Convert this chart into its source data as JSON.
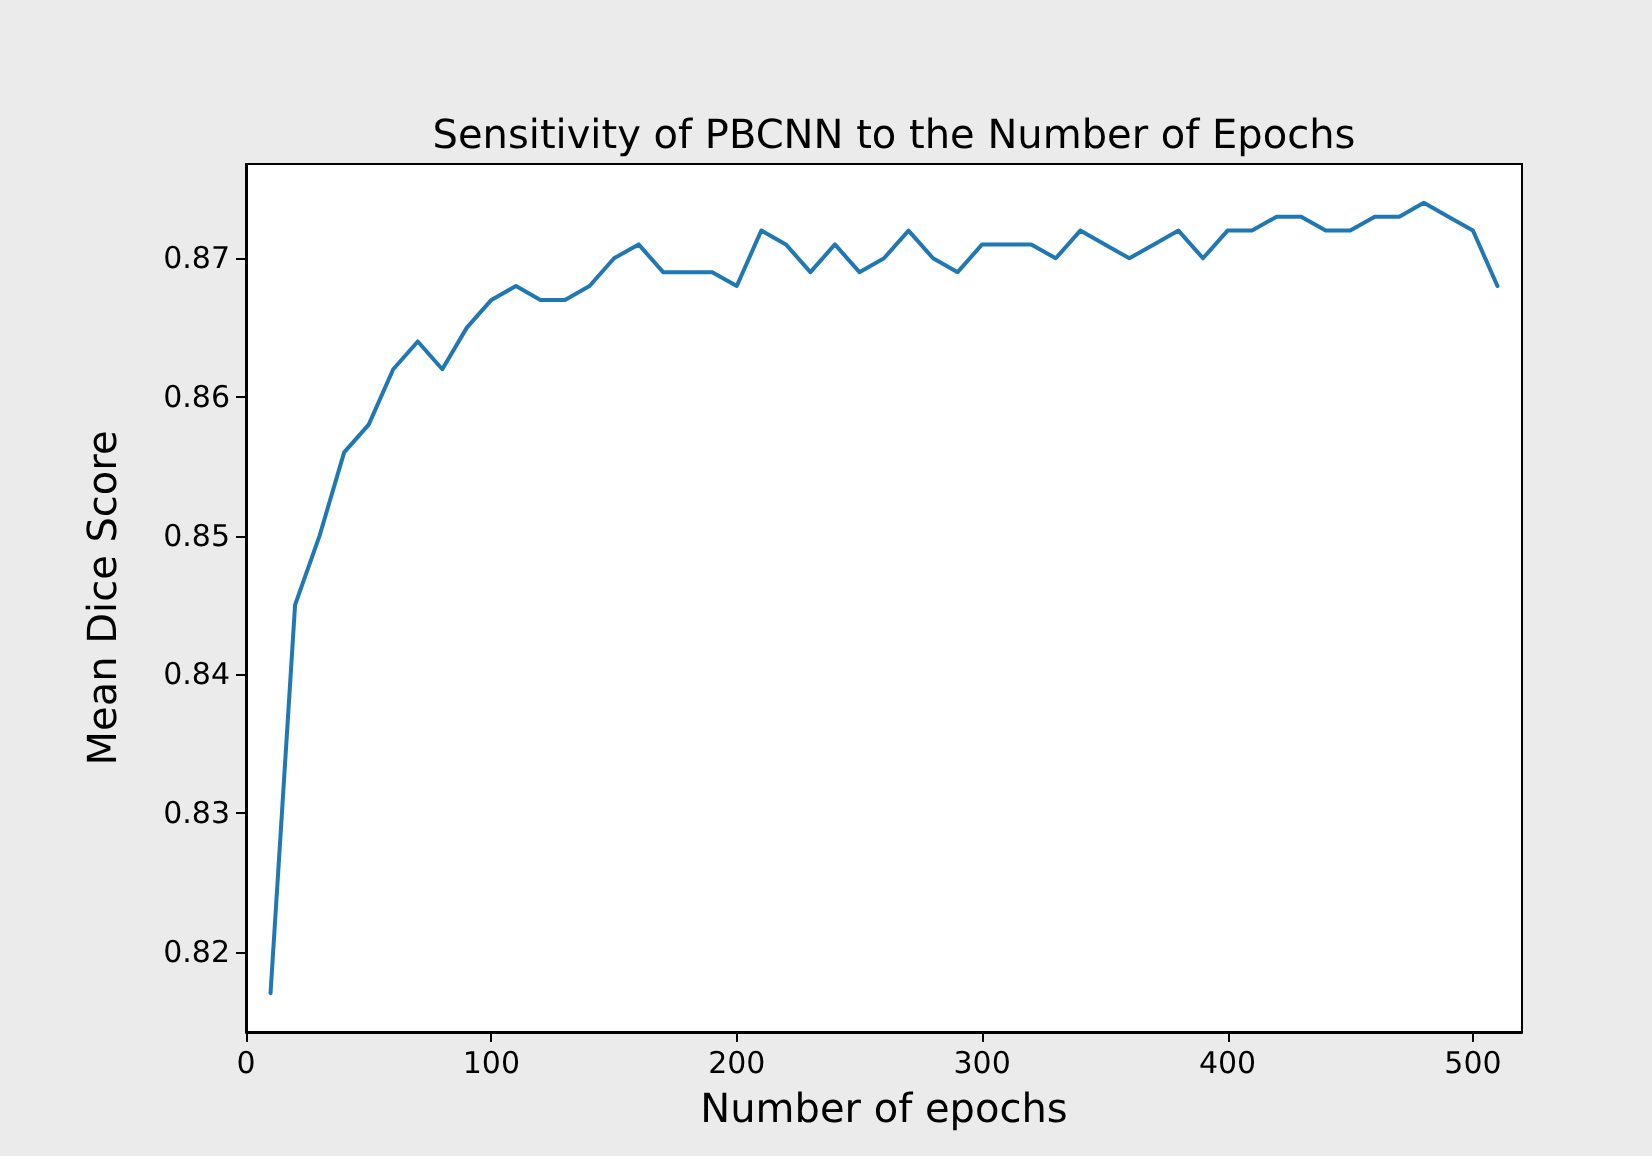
{
  "chart_data": {
    "type": "line",
    "title": "Sensitivity of PBCNN to the Number of Epochs",
    "xlabel": "Number of epochs",
    "ylabel": "Mean Dice Score",
    "x": [
      10,
      20,
      30,
      40,
      50,
      60,
      70,
      80,
      90,
      100,
      110,
      120,
      130,
      140,
      150,
      160,
      170,
      180,
      190,
      200,
      210,
      220,
      230,
      240,
      250,
      260,
      270,
      280,
      290,
      300,
      310,
      320,
      330,
      340,
      350,
      360,
      370,
      380,
      390,
      400,
      410,
      420,
      430,
      440,
      450,
      460,
      470,
      480,
      490,
      500,
      510
    ],
    "series": [
      {
        "color": "#1f77b4",
        "values": [
          0.817,
          0.845,
          0.85,
          0.856,
          0.858,
          0.862,
          0.864,
          0.862,
          0.865,
          0.867,
          0.868,
          0.867,
          0.867,
          0.868,
          0.87,
          0.871,
          0.869,
          0.869,
          0.869,
          0.868,
          0.872,
          0.871,
          0.869,
          0.871,
          0.869,
          0.87,
          0.872,
          0.87,
          0.869,
          0.871,
          0.871,
          0.871,
          0.87,
          0.872,
          0.871,
          0.87,
          0.871,
          0.872,
          0.87,
          0.872,
          0.872,
          0.873,
          0.873,
          0.872,
          0.872,
          0.873,
          0.873,
          0.874,
          0.873,
          0.872,
          0.868
        ]
      }
    ],
    "xlim": [
      0,
      520
    ],
    "xticks": [
      0,
      100,
      200,
      300,
      400,
      500
    ],
    "ylim": [
      0.8142,
      0.8768
    ],
    "yticks": [
      0.82,
      0.83,
      0.84,
      0.85,
      0.86,
      0.87
    ],
    "grid": false,
    "marker": "none",
    "line_style": "solid"
  }
}
